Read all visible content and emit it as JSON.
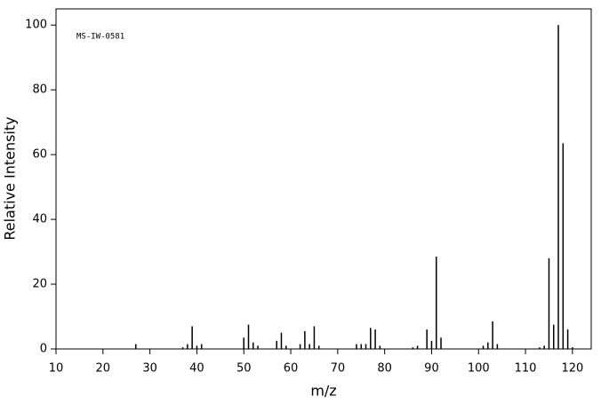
{
  "chart_data": {
    "type": "stem",
    "annotation": "MS-IW-0581",
    "x_label": "m/z",
    "y_label": "Relative Intensity",
    "x": [
      27,
      37,
      38,
      39,
      40,
      41,
      50,
      51,
      52,
      53,
      57,
      58,
      59,
      62,
      63,
      64,
      65,
      66,
      74,
      75,
      76,
      77,
      78,
      79,
      86,
      87,
      89,
      90,
      91,
      92,
      101,
      102,
      103,
      104,
      113,
      114,
      115,
      116,
      117,
      118,
      119,
      120
    ],
    "values": [
      1.5,
      0.5,
      1.5,
      7,
      1,
      1.5,
      3.5,
      7.5,
      2,
      1,
      2.5,
      5,
      1,
      1.5,
      5.5,
      1.5,
      7,
      1,
      1.5,
      1.5,
      1.5,
      6.5,
      6,
      1,
      0.5,
      1,
      6,
      2.5,
      28.5,
      3.5,
      1,
      2,
      8.5,
      1.5,
      0.5,
      1,
      28,
      7.5,
      100,
      63.5,
      6,
      0.5
    ],
    "color": "#000000",
    "xlim": [
      10,
      124
    ],
    "ylim": [
      0,
      105
    ],
    "xticks": [
      10,
      20,
      30,
      40,
      50,
      60,
      70,
      80,
      90,
      100,
      110,
      120
    ],
    "yticks": [
      0,
      20,
      40,
      60,
      80,
      100
    ]
  }
}
